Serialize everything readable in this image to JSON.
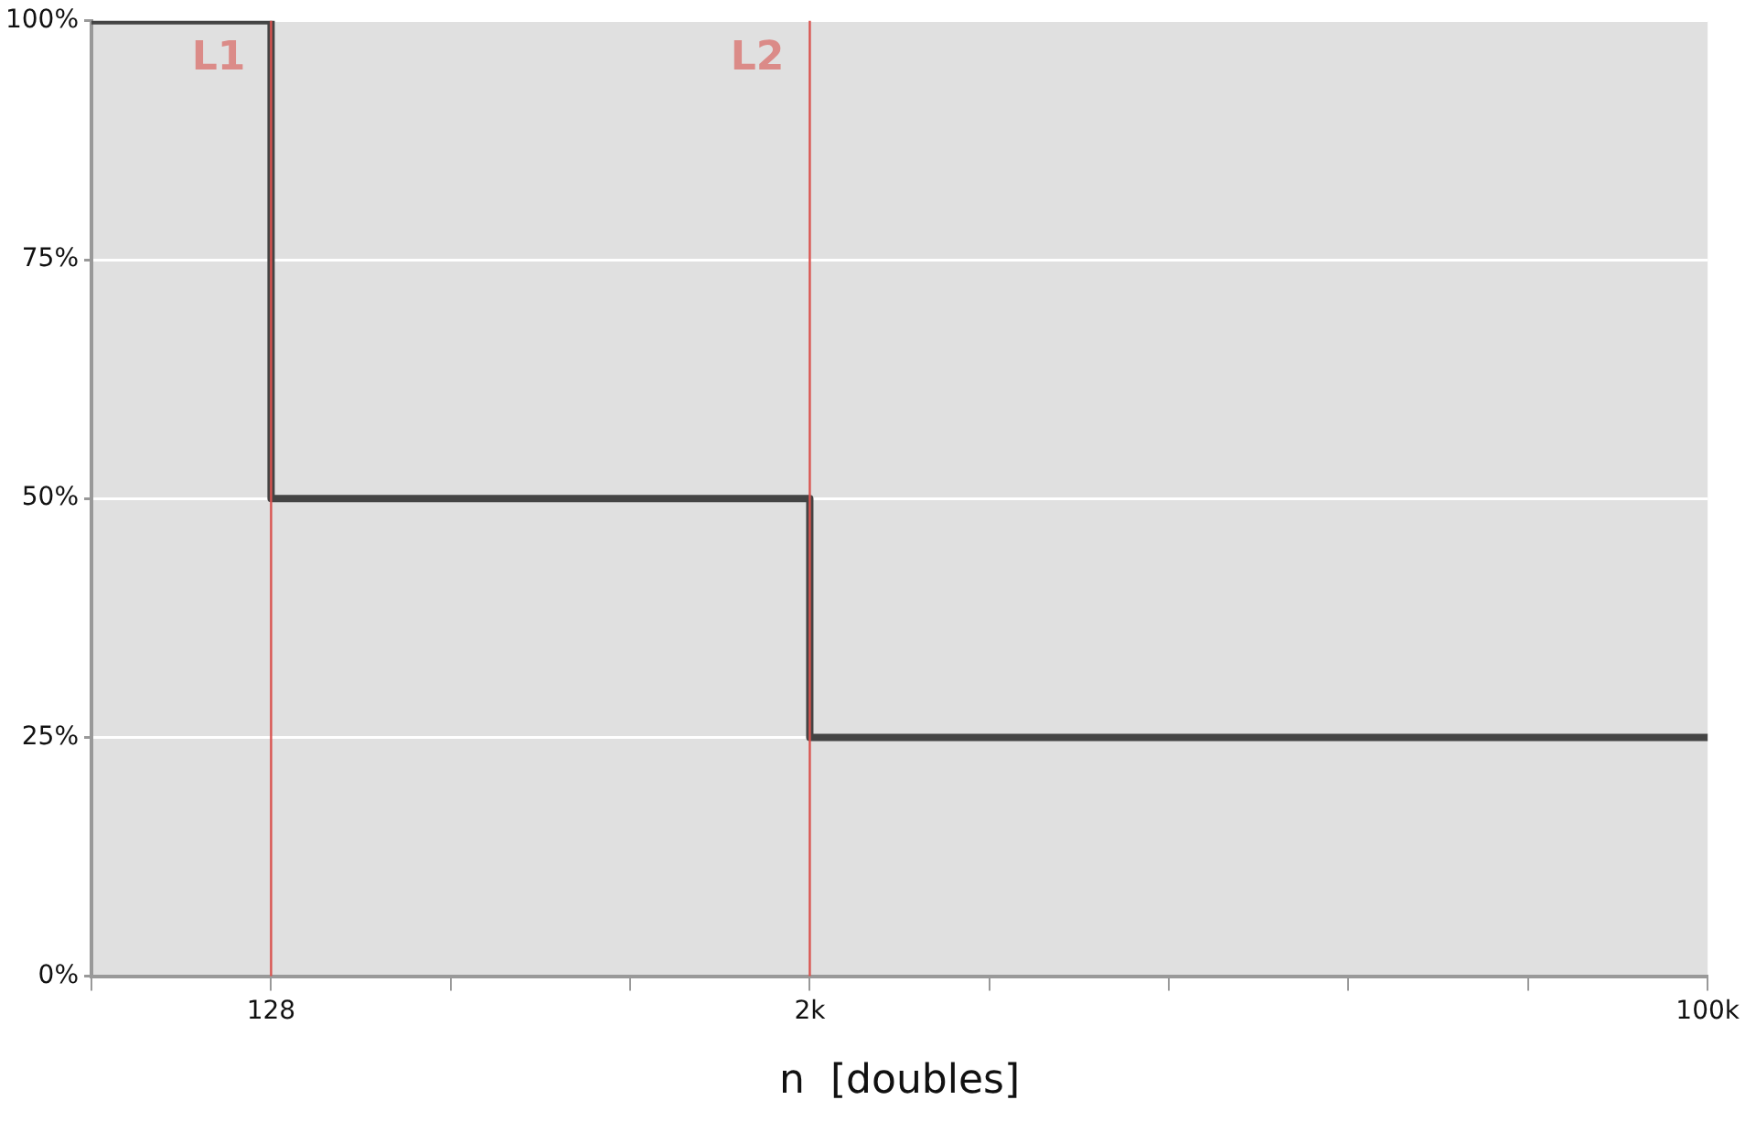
{
  "chart_data": {
    "type": "step",
    "xlabel": "n  [doubles]",
    "categories": [
      null,
      "128",
      null,
      null,
      "2k",
      null,
      null,
      null,
      null,
      "100k"
    ],
    "series": [
      {
        "color": "#444444",
        "values": [
          100,
          50,
          50,
          50,
          25,
          25,
          25,
          25,
          25,
          25
        ]
      }
    ],
    "ylim": [
      0,
      100
    ],
    "yticks": [
      {
        "value": 0,
        "label": "0%"
      },
      {
        "value": 25,
        "label": "25%"
      },
      {
        "value": 50,
        "label": "50%"
      },
      {
        "value": 75,
        "label": "75%"
      },
      {
        "value": 100,
        "label": "100%"
      }
    ],
    "ref_lines": [
      {
        "axis": "x",
        "value": "128",
        "label": "L1",
        "color": "#d9534f"
      },
      {
        "axis": "x",
        "value": "2k",
        "label": "L2",
        "color": "#d9534f"
      }
    ],
    "grid": "y",
    "legend": false
  }
}
